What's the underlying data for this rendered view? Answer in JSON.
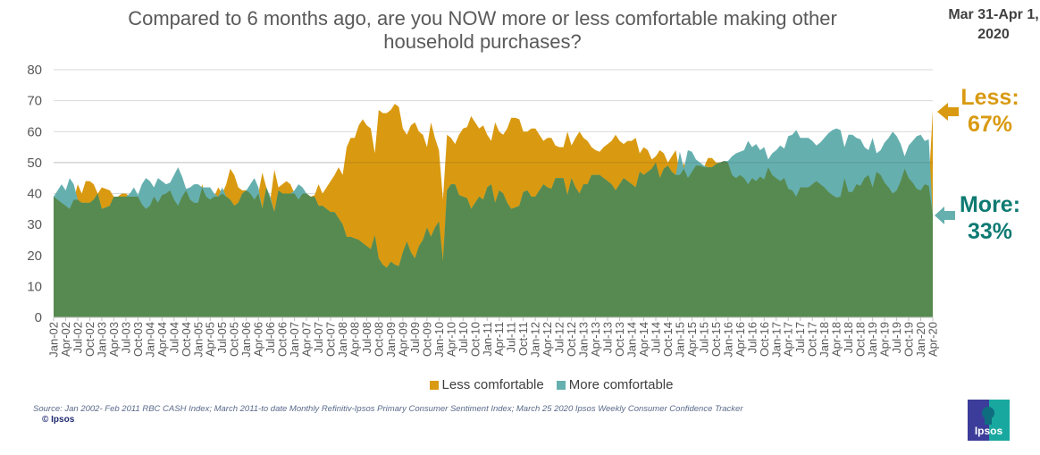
{
  "header": {
    "title_line1": "Compared to 6 months ago, are you NOW more or less comfortable making other",
    "title_line2": "household purchases?",
    "date_line1": "Mar 31-Apr 1,",
    "date_line2": "2020"
  },
  "annotations": {
    "less_label": "Less:",
    "less_value": "67%",
    "more_label": "More:",
    "more_value": "33%"
  },
  "footer": {
    "source": "Source: Jan 2002- Feb 2011 RBC CASH Index; March 2011-to date Monthly Refinitiv-Ipsos Primary Consumer Sentiment Index; March 25 2020 Ipsos Weekly Consumer Confidence Tracker",
    "copyright": "© Ipsos",
    "logo_text": "Ipsos"
  },
  "colors": {
    "less": "#D99A11",
    "more": "#66AFAF",
    "overlap": "#578A50",
    "more_text": "#0E7A72"
  },
  "chart_data": {
    "type": "area",
    "title": "Compared to 6 months ago, are you NOW more or less comfortable making other household purchases?",
    "x_frequency": "monthly",
    "x_first": "Jan-02",
    "x_last": "Apr-20",
    "ylim": [
      0,
      80
    ],
    "yticks": [
      "0",
      "10",
      "20",
      "30",
      "40",
      "50",
      "60",
      "70",
      "80"
    ],
    "grid": "horizontal",
    "legend_position": "bottom",
    "xticks": [
      "Jan-02",
      "Apr-02",
      "Jul-02",
      "Oct-02",
      "Jan-03",
      "Apr-03",
      "Jul-03",
      "Oct-03",
      "Jan-04",
      "Apr-04",
      "Jul-04",
      "Oct-04",
      "Jan-05",
      "Apr-05",
      "Jul-05",
      "Oct-05",
      "Jan-06",
      "Apr-06",
      "Jul-06",
      "Oct-06",
      "Jan-07",
      "Apr-07",
      "Jul-07",
      "Oct-07",
      "Jan-08",
      "Apr-08",
      "Jul-08",
      "Oct-08",
      "Jan-09",
      "Apr-09",
      "Jul-09",
      "Oct-09",
      "Jan-10",
      "Apr-10",
      "Jul-10",
      "Oct-10",
      "Jan-11",
      "Apr-11",
      "Jul-11",
      "Oct-11",
      "Jan-12",
      "Apr-12",
      "Jul-12",
      "Oct-12",
      "Jan-13",
      "Apr-13",
      "Jul-13",
      "Oct-13",
      "Jan-14",
      "Apr-14",
      "Jul-14",
      "Oct-14",
      "Jan-15",
      "Apr-15",
      "Jul-15",
      "Oct-15",
      "Jan-16",
      "Apr-16",
      "Jul-16",
      "Oct-16",
      "Jan-17",
      "Apr-17",
      "Jul-17",
      "Oct-17",
      "Jan-18",
      "Apr-18",
      "Jul-18",
      "Oct-18",
      "Jan-19",
      "Apr-19",
      "Jul-19",
      "Oct-19",
      "Jan-20",
      "Apr-20"
    ],
    "series": [
      {
        "name": "Less comfortable",
        "values": [
          39,
          38,
          37,
          36,
          35,
          38,
          43,
          40,
          44,
          44,
          43,
          40,
          42,
          41.5,
          41,
          39,
          39,
          40,
          40,
          39,
          39,
          39,
          36.5,
          35,
          36,
          39,
          37,
          39.5,
          40,
          41,
          38,
          36,
          39,
          41,
          38,
          37,
          37,
          43,
          39,
          38,
          39,
          42,
          40,
          43,
          48,
          46,
          42,
          41,
          41,
          40,
          38,
          40,
          46.7,
          42,
          38,
          47.7,
          42,
          43,
          44,
          43,
          40,
          38,
          40,
          40,
          39,
          39.5,
          43,
          40,
          42,
          44,
          46,
          48.5,
          46,
          55,
          58,
          58,
          62,
          64,
          62,
          61,
          53,
          67,
          66,
          66,
          67,
          69,
          68,
          61,
          59,
          62,
          63,
          60,
          59,
          55,
          63,
          58,
          54,
          38,
          59,
          58,
          56,
          59,
          61,
          61.5,
          65,
          63,
          61,
          62,
          59,
          57,
          63,
          60,
          59,
          61,
          64.5,
          64.5,
          64,
          60,
          60,
          61,
          61,
          59,
          57,
          58,
          58,
          55.5,
          55,
          55,
          60,
          55.5,
          58,
          60,
          58,
          57,
          55,
          54,
          53.5,
          55,
          56,
          57,
          59,
          57,
          56,
          57,
          57,
          58,
          53,
          55,
          54,
          51,
          52,
          54,
          53,
          50,
          52,
          54,
          46,
          50,
          45,
          47,
          49,
          49,
          48.5,
          51.5,
          51.5,
          50,
          50,
          50.5,
          50,
          46,
          45,
          46,
          45,
          43,
          45,
          44,
          45.5,
          44.5,
          48.5,
          46,
          45,
          44,
          45,
          41.5,
          41,
          39,
          42,
          42,
          42,
          43,
          44,
          43,
          42,
          40.5,
          39.5,
          38.7,
          39,
          45,
          40.5,
          40.5,
          43,
          42.5,
          45,
          46,
          42,
          47,
          46,
          43.5,
          42,
          40,
          41,
          44,
          48,
          45,
          43.5,
          41.5,
          41,
          43,
          42.5,
          67
        ]
      },
      {
        "name": "More comfortable",
        "values": [
          39,
          41,
          43,
          41,
          45,
          43,
          38,
          37,
          37,
          37,
          38,
          40,
          35,
          35.5,
          36,
          39,
          39,
          39,
          39,
          40,
          42,
          39.5,
          43,
          45,
          44,
          42,
          45,
          44,
          43,
          43.5,
          46,
          48.5,
          45.5,
          41.5,
          42,
          43,
          43,
          42,
          42,
          42,
          40,
          39,
          42,
          39,
          38,
          36,
          37,
          40,
          41,
          43,
          45,
          42,
          35,
          42,
          39,
          34,
          41,
          40,
          40,
          40,
          41,
          43,
          42,
          40,
          39,
          39,
          36,
          36,
          35,
          34,
          34,
          32,
          30,
          26,
          26,
          25.5,
          25,
          24,
          23,
          22,
          26.5,
          19,
          17,
          16,
          18,
          17,
          16.5,
          21,
          24.5,
          21,
          19,
          23,
          25,
          29,
          26,
          29,
          31,
          18,
          41,
          43,
          43,
          39.5,
          39,
          38.5,
          35,
          37,
          39,
          38,
          42,
          43,
          37,
          41,
          40,
          37,
          35,
          35.5,
          36,
          40.5,
          41,
          39,
          39,
          41,
          43,
          42,
          41.5,
          45,
          45,
          45,
          39.5,
          45,
          42,
          40,
          43,
          43,
          46,
          46,
          46,
          45,
          44,
          43,
          41,
          43,
          45,
          44,
          43,
          42,
          47,
          46,
          47,
          48,
          50,
          45,
          48,
          49,
          47,
          46,
          53.5,
          48,
          54,
          53.5,
          51,
          50,
          49,
          48.5,
          48.5,
          49.5,
          50,
          50.5,
          50.5,
          52,
          53,
          53.5,
          54,
          57,
          55,
          56,
          54,
          55,
          51,
          53,
          54,
          55.5,
          54.5,
          58.5,
          59,
          60.5,
          58,
          58,
          58,
          57,
          55.5,
          56.5,
          58,
          59.5,
          60.5,
          61,
          60.5,
          55,
          59,
          59,
          58,
          57.5,
          55,
          54,
          58,
          53,
          54,
          56.5,
          58,
          60,
          58.5,
          56,
          52,
          55.5,
          57,
          58.5,
          59,
          57,
          57.5,
          33
        ]
      }
    ]
  }
}
